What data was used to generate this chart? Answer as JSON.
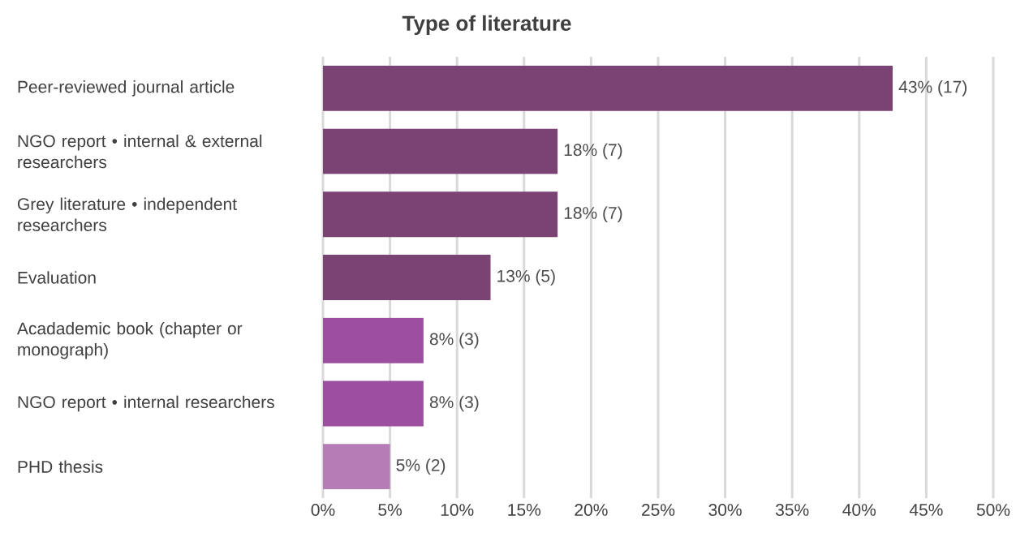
{
  "chart_data": {
    "type": "bar",
    "orientation": "horizontal",
    "title": "Type of literature",
    "categories": [
      "Peer-reviewed journal article",
      "NGO report • internal & external researchers",
      "Grey literature • independent researchers",
      "Evaluation",
      "Acadademic book (chapter or monograph)",
      "NGO report • internal researchers",
      "PHD thesis"
    ],
    "values": [
      42.5,
      17.5,
      17.5,
      12.5,
      7.5,
      7.5,
      5
    ],
    "value_labels": [
      "43% (17)",
      "18% (7)",
      "18% (7)",
      "13% (5)",
      "8% (3)",
      "8% (3)",
      "5% (2)"
    ],
    "colors": [
      "#7a4373",
      "#7a4373",
      "#7a4373",
      "#7a4373",
      "#9b4f9e",
      "#9b4f9e",
      "#b57cb5"
    ],
    "xlim": [
      0,
      50
    ],
    "xticks": [
      {
        "value": 0,
        "label": "0%"
      },
      {
        "value": 5,
        "label": "5%"
      },
      {
        "value": 10,
        "label": "10%"
      },
      {
        "value": 15,
        "label": "15%"
      },
      {
        "value": 20,
        "label": "20%"
      },
      {
        "value": 25,
        "label": "25%"
      },
      {
        "value": 30,
        "label": "30%"
      },
      {
        "value": 35,
        "label": "35%"
      },
      {
        "value": 40,
        "label": "40%"
      },
      {
        "value": 45,
        "label": "45%"
      },
      {
        "value": 50,
        "label": "50%"
      }
    ],
    "grid": "x"
  }
}
